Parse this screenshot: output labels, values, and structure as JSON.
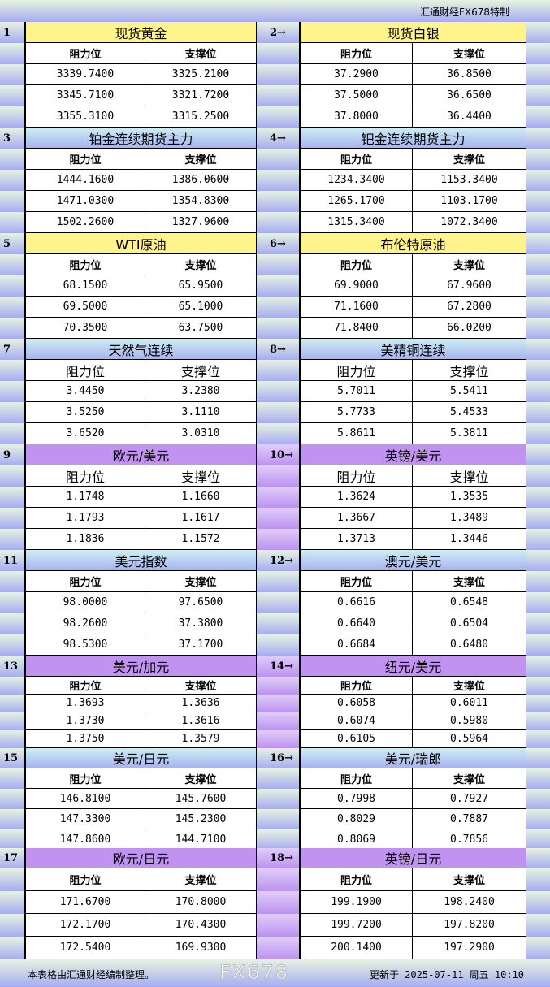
{
  "header": {
    "brand": "汇通财经FX678特制"
  },
  "labels": {
    "resistance": "阻力位",
    "support": "支撑位"
  },
  "colors": {
    "yellow": "#fff48c",
    "blue": "#a8b4f0",
    "purple": "#c292f0"
  },
  "sections": [
    {
      "index": "1",
      "title": "现货黄金",
      "theme": "yellow",
      "res": [
        "3339.7400",
        "3345.7100",
        "3355.3100"
      ],
      "sup": [
        "3325.2100",
        "3321.7200",
        "3315.2500"
      ]
    },
    {
      "index": "2→",
      "title": "现货白银",
      "theme": "yellow",
      "res": [
        "37.2900",
        "37.5000",
        "37.8000"
      ],
      "sup": [
        "36.8500",
        "36.6500",
        "36.4400"
      ]
    },
    {
      "index": "3",
      "title": "铂金连续期货主力",
      "theme": "blue",
      "res": [
        "1444.1600",
        "1471.0300",
        "1502.2600"
      ],
      "sup": [
        "1386.0600",
        "1354.8300",
        "1327.9600"
      ]
    },
    {
      "index": "4→",
      "title": "钯金连续期货主力",
      "theme": "blue",
      "res": [
        "1234.3400",
        "1265.1700",
        "1315.3400"
      ],
      "sup": [
        "1153.3400",
        "1103.1700",
        "1072.3400"
      ]
    },
    {
      "index": "5",
      "title": "WTI原油",
      "theme": "yellow",
      "res": [
        "68.1500",
        "69.5000",
        "70.3500"
      ],
      "sup": [
        "65.9500",
        "65.1000",
        "63.7500"
      ]
    },
    {
      "index": "6→",
      "title": "布伦特原油",
      "theme": "yellow",
      "res": [
        "69.9000",
        "71.1600",
        "71.8400"
      ],
      "sup": [
        "67.9600",
        "67.2800",
        "66.0200"
      ]
    },
    {
      "index": "7",
      "title": "天然气连续",
      "theme": "blue",
      "res": [
        "3.4450",
        "3.5250",
        "3.6520"
      ],
      "sup": [
        "3.2380",
        "3.1110",
        "3.0310"
      ]
    },
    {
      "index": "8→",
      "title": "美精铜连续",
      "theme": "blue",
      "res": [
        "5.7011",
        "5.7733",
        "5.8611"
      ],
      "sup": [
        "5.5411",
        "5.4533",
        "5.3811"
      ]
    },
    {
      "index": "9",
      "title": "欧元/美元",
      "theme": "purple",
      "res": [
        "1.1748",
        "1.1793",
        "1.1836"
      ],
      "sup": [
        "1.1660",
        "1.1617",
        "1.1572"
      ]
    },
    {
      "index": "10→",
      "title": "英镑/美元",
      "theme": "purple",
      "res": [
        "1.3624",
        "1.3667",
        "1.3713"
      ],
      "sup": [
        "1.3535",
        "1.3489",
        "1.3446"
      ]
    },
    {
      "index": "11",
      "title": "美元指数",
      "theme": "blue",
      "res": [
        "98.0000",
        "98.2600",
        "98.5300"
      ],
      "sup": [
        "97.6500",
        "37.3800",
        "37.1700"
      ]
    },
    {
      "index": "12→",
      "title": "澳元/美元",
      "theme": "blue",
      "res": [
        "0.6616",
        "0.6640",
        "0.6684"
      ],
      "sup": [
        "0.6548",
        "0.6504",
        "0.6480"
      ]
    },
    {
      "index": "13",
      "title": "美元/加元",
      "theme": "purple",
      "res": [
        "1.3693",
        "1.3730",
        "1.3750"
      ],
      "sup": [
        "1.3636",
        "1.3616",
        "1.3579"
      ]
    },
    {
      "index": "14→",
      "title": "纽元/美元",
      "theme": "purple",
      "res": [
        "0.6058",
        "0.6074",
        "0.6105"
      ],
      "sup": [
        "0.6011",
        "0.5980",
        "0.5964"
      ]
    },
    {
      "index": "15",
      "title": "美元/日元",
      "theme": "blue",
      "res": [
        "146.8100",
        "147.3300",
        "147.8600"
      ],
      "sup": [
        "145.7600",
        "145.2300",
        "144.7100"
      ]
    },
    {
      "index": "16→",
      "title": "美元/瑞郎",
      "theme": "blue",
      "res": [
        "0.7998",
        "0.8029",
        "0.8069"
      ],
      "sup": [
        "0.7927",
        "0.7887",
        "0.7856"
      ]
    },
    {
      "index": "17",
      "title": "欧元/日元",
      "theme": "purple",
      "res": [
        "171.6700",
        "172.1700",
        "172.5400"
      ],
      "sup": [
        "170.8000",
        "170.4300",
        "169.9300"
      ]
    },
    {
      "index": "18→",
      "title": "英镑/日元",
      "theme": "purple",
      "res": [
        "199.1900",
        "199.7200",
        "200.1400"
      ],
      "sup": [
        "198.2400",
        "197.8200",
        "197.2900"
      ]
    }
  ],
  "footer": {
    "note": "本表格由汇通财经编制整理。",
    "updated": "更新于 2025-07-11 周五 10:10",
    "watermark": "FX678"
  }
}
